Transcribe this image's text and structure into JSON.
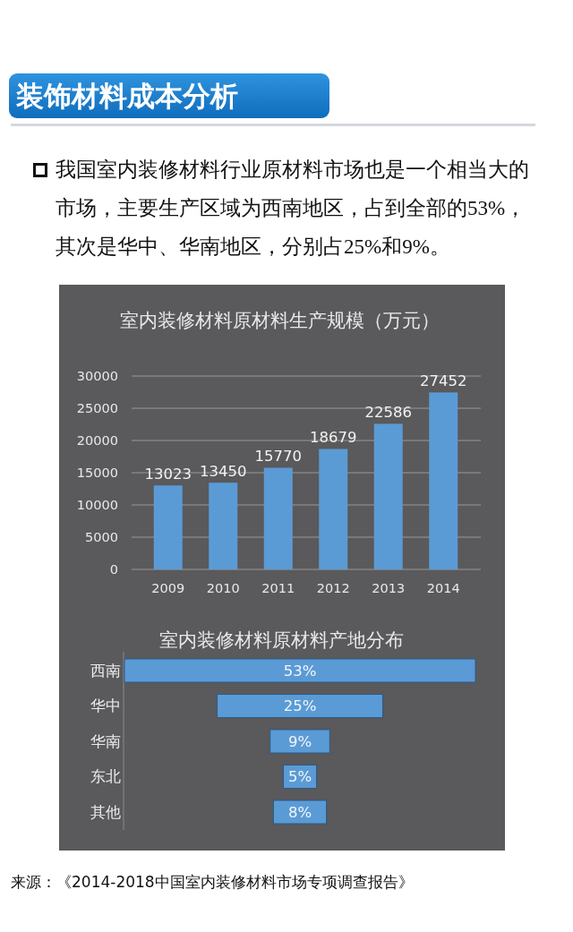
{
  "chart_data": [
    {
      "type": "other",
      "title": "装饰材料成本分析",
      "annotations": [
        "我国室内装修材料行业原材料市场也是一个相当大的市场，主要生产区域为西南地区，占到全部的53%，其次是华中、华南地区，分别占25%和9%。"
      ]
    },
    {
      "type": "bar",
      "title": "室内装修材料原材料生产规模（万元）",
      "categories": [
        "2009",
        "2010",
        "2011",
        "2012",
        "2013",
        "2014"
      ],
      "values": [
        13023,
        13450,
        15770,
        18679,
        22586,
        27452
      ],
      "color": "#5b9bd5",
      "ylim": [
        0,
        30000
      ],
      "yticks": [
        0,
        5000,
        10000,
        15000,
        20000,
        25000,
        30000
      ],
      "grid": "y",
      "data_labels": true
    },
    {
      "type": "other",
      "title": "室内装修材料原材料产地分布",
      "categories": [
        "西南",
        "华中",
        "华南",
        "东北",
        "其他"
      ],
      "values": [
        53,
        25,
        9,
        5,
        8
      ],
      "value_labels": [
        "53%",
        "25%",
        "9%",
        "5%",
        "8%"
      ],
      "color": "#5b9bd5"
    },
    {
      "type": "other",
      "annotations": [
        "来源：《2014-2018中国室内装修材料市场专项调查报告》"
      ]
    }
  ]
}
